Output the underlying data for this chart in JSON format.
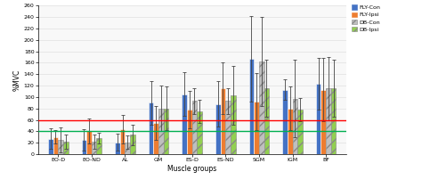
{
  "categories": [
    "EO-D",
    "EO-ND",
    "AL",
    "GM",
    "ES-D",
    "ES-ND",
    "SGM",
    "IGM",
    "BF"
  ],
  "series": {
    "FLY-Con": [
      27,
      25,
      21,
      90,
      105,
      88,
      167,
      113,
      123
    ],
    "FLY-Ipsi": [
      30,
      40,
      43,
      55,
      78,
      115,
      92,
      80,
      113
    ],
    "DB-Con": [
      25,
      22,
      21,
      80,
      93,
      93,
      163,
      97,
      115
    ],
    "DB-Ipsi": [
      22,
      28,
      34,
      80,
      75,
      103,
      115,
      78,
      116
    ]
  },
  "errors": {
    "FLY-Con": [
      18,
      18,
      15,
      38,
      38,
      40,
      75,
      18,
      45
    ],
    "FLY-Ipsi": [
      12,
      22,
      25,
      30,
      32,
      45,
      50,
      38,
      55
    ],
    "DB-Con": [
      22,
      12,
      12,
      40,
      22,
      22,
      78,
      68,
      55
    ],
    "DB-Ipsi": [
      12,
      10,
      18,
      38,
      20,
      52,
      50,
      20,
      50
    ]
  },
  "colors": {
    "FLY-Con": "#4472C4",
    "FLY-Ipsi": "#ED7D31",
    "DB-Con": "#BFBFBF",
    "DB-Ipsi": "#92D050"
  },
  "hatch": {
    "FLY-Con": "",
    "FLY-Ipsi": "",
    "DB-Con": "///",
    "DB-Ipsi": "///"
  },
  "hline1": 60,
  "hline2": 40,
  "hline1_color": "#FF0000",
  "hline2_color": "#00B050",
  "xlabel": "Muscle groups",
  "ylabel": "%MVC",
  "ylim": [
    0,
    260
  ],
  "yticks": [
    0,
    20,
    40,
    60,
    80,
    100,
    120,
    140,
    160,
    180,
    200,
    220,
    240,
    260
  ],
  "bar_width": 0.15,
  "background_color": "#FFFFFF",
  "plot_bg_color": "#F8F8F8",
  "grid_color": "#E0E0E0",
  "legend_labels": [
    "FLY-Con",
    "FLY-Ipsi",
    "DB-Con",
    "DB-Ipsi"
  ],
  "figsize": [
    4.74,
    2.11
  ],
  "dpi": 100
}
